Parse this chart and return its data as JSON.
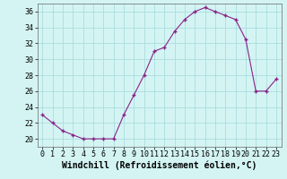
{
  "x": [
    0,
    1,
    2,
    3,
    4,
    5,
    6,
    7,
    8,
    9,
    10,
    11,
    12,
    13,
    14,
    15,
    16,
    17,
    18,
    19,
    20,
    21,
    22,
    23
  ],
  "y": [
    23,
    22,
    21,
    20.5,
    20,
    20,
    20,
    20,
    23,
    25.5,
    28,
    31,
    31.5,
    33.5,
    35,
    36,
    36.5,
    36,
    35.5,
    35,
    32.5,
    26,
    26,
    27.5
  ],
  "line_color": "#882288",
  "marker": "+",
  "marker_size": 3,
  "marker_lw": 1.0,
  "line_width": 0.8,
  "bg_color": "#d4f4f4",
  "grid_color": "#aadddd",
  "xlabel": "Windchill (Refroidissement éolien,°C)",
  "xlabel_fontsize": 7,
  "tick_fontsize": 6,
  "ylim": [
    19,
    37
  ],
  "yticks": [
    20,
    22,
    24,
    26,
    28,
    30,
    32,
    34,
    36
  ],
  "xticks": [
    0,
    1,
    2,
    3,
    4,
    5,
    6,
    7,
    8,
    9,
    10,
    11,
    12,
    13,
    14,
    15,
    16,
    17,
    18,
    19,
    20,
    21,
    22,
    23
  ],
  "xlim": [
    -0.5,
    23.5
  ]
}
